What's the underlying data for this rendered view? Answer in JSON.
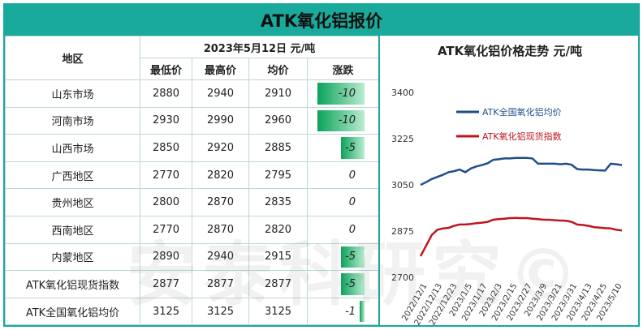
{
  "title": "ATK氧化铝报价",
  "table": {
    "region_header": "地区",
    "date_header": "2023年5月12日  元/吨",
    "columns": [
      "最低价",
      "最高价",
      "均价",
      "涨跌"
    ],
    "rows": [
      {
        "region": "山东市场",
        "low": "2880",
        "high": "2940",
        "avg": "2910",
        "change": "-10",
        "change_value": -10
      },
      {
        "region": "河南市场",
        "low": "2930",
        "high": "2990",
        "avg": "2960",
        "change": "-10",
        "change_value": -10
      },
      {
        "region": "山西市场",
        "low": "2850",
        "high": "2920",
        "avg": "2885",
        "change": "-5",
        "change_value": -5
      },
      {
        "region": "广西地区",
        "low": "2770",
        "high": "2820",
        "avg": "2795",
        "change": "0",
        "change_value": 0
      },
      {
        "region": "贵州地区",
        "low": "2800",
        "high": "2870",
        "avg": "2835",
        "change": "0",
        "change_value": 0
      },
      {
        "region": "西南地区",
        "low": "2770",
        "high": "2870",
        "avg": "2820",
        "change": "0",
        "change_value": 0
      },
      {
        "region": "内蒙地区",
        "low": "2890",
        "high": "2940",
        "avg": "2915",
        "change": "-5",
        "change_value": -5
      },
      {
        "region": "ATK氧化铝现货指数",
        "low": "2877",
        "high": "2877",
        "avg": "2877",
        "change": "-5",
        "change_value": -5
      },
      {
        "region": "ATK全国氧化铝均价",
        "low": "3125",
        "high": "3125",
        "avg": "3125",
        "change": "-1",
        "change_value": -1
      }
    ]
  },
  "watermark": "安泰科研究©",
  "colors": {
    "accent": "#1aaa9c",
    "bar": "#0aa35a",
    "series_avg": "#1f4e8c",
    "series_index": "#c0141e"
  },
  "chart_data": {
    "type": "line",
    "title": "ATK氧化铝价格走势  元/吨",
    "ylim": [
      2700,
      3400
    ],
    "yticks": [
      "3400",
      "3225",
      "3050",
      "2875",
      "2700"
    ],
    "xticks": [
      "2022/12/1",
      "2022/12/13",
      "2022/12/23",
      "2023/1/5",
      "2023/1/17",
      "2023/2/3",
      "2023/2/15",
      "2023/2/27",
      "2023/3/9",
      "2023/3/21",
      "2023/3/31",
      "2023/4/13",
      "2023/4/25",
      "2023/5/10"
    ],
    "legend_position": "top-left",
    "grid": false,
    "series": [
      {
        "name": "ATK全国氧化铝均价",
        "values": [
          3050,
          3060,
          3072,
          3080,
          3088,
          3098,
          3102,
          3108,
          3098,
          3112,
          3120,
          3125,
          3132,
          3145,
          3147,
          3150,
          3150,
          3152,
          3152,
          3152,
          3150,
          3130,
          3130,
          3130,
          3130,
          3128,
          3130,
          3126,
          3110,
          3108,
          3108,
          3106,
          3105,
          3104,
          3130,
          3128,
          3125
        ]
      },
      {
        "name": "ATK氧化铝现货指数",
        "values": [
          2780,
          2820,
          2860,
          2880,
          2885,
          2887,
          2895,
          2900,
          2900,
          2902,
          2905,
          2907,
          2910,
          2918,
          2920,
          2922,
          2924,
          2925,
          2924,
          2924,
          2922,
          2920,
          2918,
          2918,
          2916,
          2915,
          2914,
          2910,
          2900,
          2898,
          2895,
          2890,
          2888,
          2886,
          2885,
          2880,
          2877
        ]
      }
    ]
  }
}
